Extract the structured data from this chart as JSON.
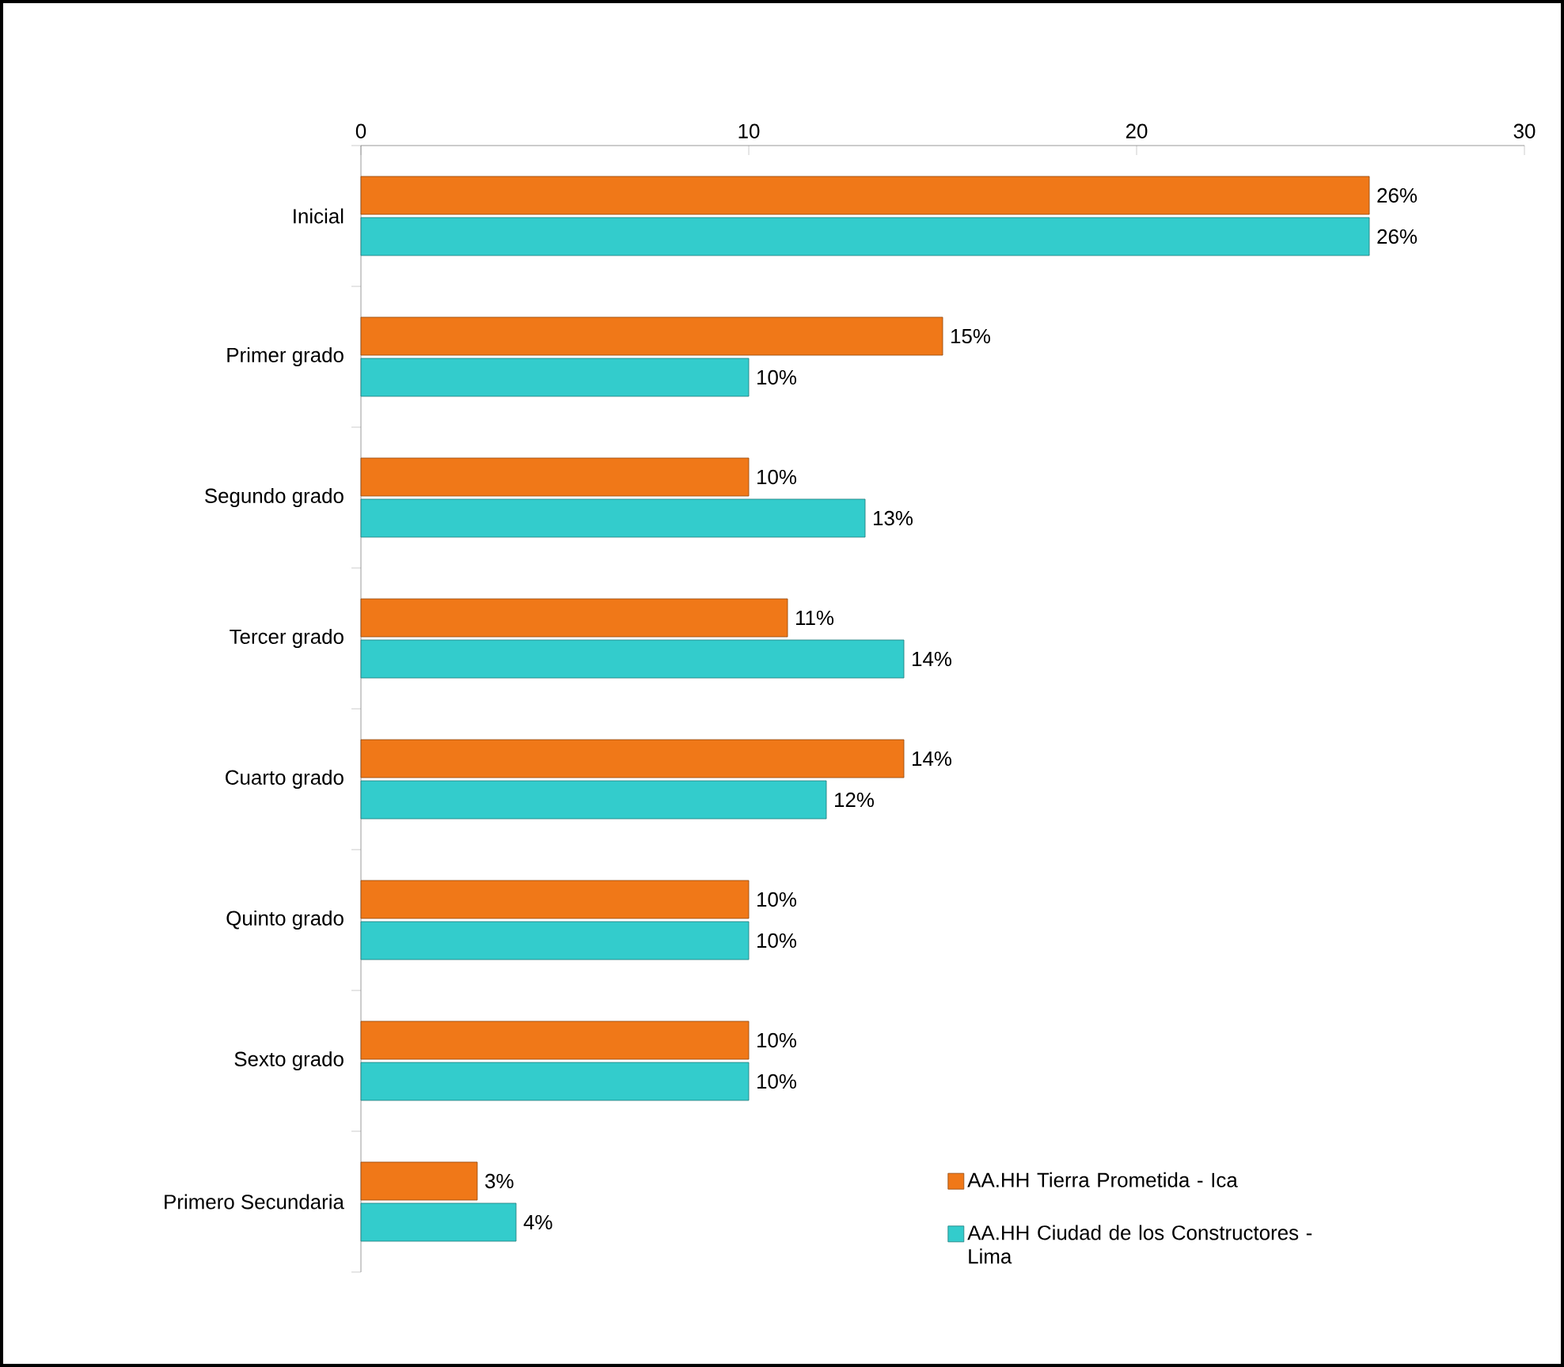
{
  "chart_data": {
    "type": "bar",
    "orientation": "horizontal",
    "categories": [
      "Inicial",
      "Primer grado",
      "Segundo grado",
      "Tercer grado",
      "Cuarto grado",
      "Quinto grado",
      "Sexto grado",
      "Primero Secundaria"
    ],
    "series": [
      {
        "name": "AA.HH Tierra Prometida - Ica",
        "color": "#f07818",
        "values": [
          26,
          15,
          10,
          11,
          14,
          10,
          10,
          3
        ],
        "value_labels": [
          "26%",
          "15%",
          "10%",
          "11%",
          "14%",
          "10%",
          "10%",
          "3%"
        ]
      },
      {
        "name": "AA.HH Ciudad de los Constructores - Lima",
        "color": "#33cccc",
        "values": [
          26,
          10,
          13,
          14,
          12,
          10,
          10,
          4
        ],
        "value_labels": [
          "26%",
          "10%",
          "13%",
          "14%",
          "12%",
          "10%",
          "10%",
          "4%"
        ]
      }
    ],
    "xlim": [
      0,
      30
    ],
    "xticks": [
      0,
      10,
      20,
      30
    ],
    "grid": false,
    "legend": "bottom right"
  }
}
